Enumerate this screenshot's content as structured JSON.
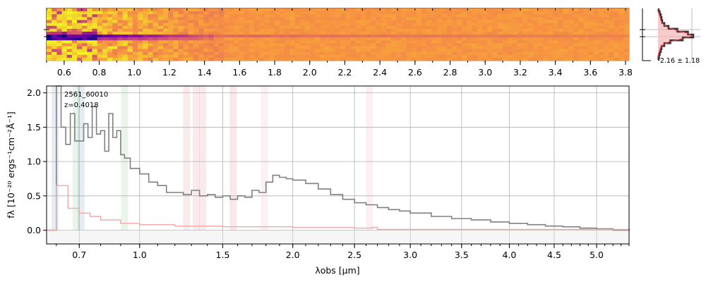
{
  "chart_data": [
    {
      "panel": "2d-spectrum",
      "type": "heatmap",
      "colormap": "plasma",
      "xaxis": "top",
      "xticks": [
        "0.6",
        "0.8",
        "1.0",
        "1.2",
        "1.4",
        "1.6",
        "1.8",
        "2.0",
        "2.2",
        "2.4",
        "2.6",
        "2.8",
        "3.0",
        "3.2",
        "3.4",
        "3.6",
        "3.8"
      ],
      "xlim": [
        0.5,
        3.82
      ],
      "trace_color": "#3a0a90"
    },
    {
      "panel": "spatial-profile",
      "type": "line",
      "label": "2.16 ± 1.18",
      "profile_rows": [
        0.02,
        0.05,
        0.08,
        0.1,
        0.12,
        0.18,
        0.3,
        0.55,
        0.85,
        1.0,
        0.7,
        0.35,
        0.18,
        0.1,
        0.08,
        0.05,
        0.03,
        0.02
      ],
      "model_color": "#d9434a",
      "data_color": "#333333"
    },
    {
      "panel": "1d-spectrum",
      "type": "line",
      "object_id": "2561_60010",
      "redshift_label": "z=0.4018",
      "xlabel": "λobs [μm]",
      "ylabel": "fλ [10⁻²⁰ ergs⁻¹cm⁻²Å⁻¹]",
      "xscale": "sqrt",
      "xlim": [
        0.56,
        5.4
      ],
      "ylim": [
        -0.2,
        2.1
      ],
      "xticks": [
        0.7,
        1.0,
        1.5,
        2.0,
        2.5,
        3.0,
        3.5,
        4.0,
        4.5,
        5.0
      ],
      "xtick_labels": [
        "0.7",
        "1.0",
        "1.5",
        "2.0",
        "2.5",
        "3.0",
        "3.5",
        "4.0",
        "4.5",
        "5.0"
      ],
      "yticks": [
        0.0,
        0.5,
        1.0,
        1.5,
        2.0
      ],
      "ytick_labels": [
        "0.0",
        "0.5",
        "1.0",
        "1.5",
        "2.0"
      ],
      "grid": true,
      "series": [
        {
          "role": "flux",
          "color": "#808080",
          "x": [
            0.56,
            0.6,
            0.62,
            0.64,
            0.66,
            0.68,
            0.7,
            0.72,
            0.74,
            0.76,
            0.78,
            0.8,
            0.82,
            0.84,
            0.86,
            0.88,
            0.9,
            0.92,
            0.95,
            1.0,
            1.05,
            1.1,
            1.15,
            1.2,
            1.25,
            1.3,
            1.35,
            1.4,
            1.45,
            1.5,
            1.55,
            1.6,
            1.65,
            1.7,
            1.75,
            1.8,
            1.85,
            1.9,
            1.95,
            2.0,
            2.1,
            2.2,
            2.3,
            2.4,
            2.5,
            2.6,
            2.7,
            2.8,
            2.9,
            3.0,
            3.2,
            3.4,
            3.6,
            3.8,
            4.0,
            4.2,
            4.4,
            4.6,
            4.8,
            5.0,
            5.2,
            5.4
          ],
          "y": [
            0.0,
            2.1,
            1.5,
            1.25,
            1.7,
            1.3,
            1.3,
            1.55,
            1.35,
            1.8,
            1.4,
            1.45,
            1.15,
            1.7,
            1.35,
            1.45,
            1.1,
            1.05,
            0.9,
            0.82,
            0.7,
            0.65,
            0.55,
            0.55,
            0.52,
            0.58,
            0.5,
            0.52,
            0.48,
            0.5,
            0.45,
            0.5,
            0.48,
            0.58,
            0.55,
            0.7,
            0.8,
            0.77,
            0.75,
            0.73,
            0.68,
            0.6,
            0.52,
            0.45,
            0.4,
            0.37,
            0.33,
            0.3,
            0.28,
            0.25,
            0.2,
            0.17,
            0.15,
            0.12,
            0.1,
            0.08,
            0.06,
            0.05,
            0.03,
            0.02,
            0.0,
            0.02
          ]
        },
        {
          "role": "uncertainty",
          "color": "#f0a8a8",
          "x": [
            0.56,
            0.6,
            0.65,
            0.7,
            0.75,
            0.8,
            0.9,
            1.0,
            1.2,
            1.5,
            2.0,
            2.5,
            2.65,
            2.7,
            3.0,
            4.0,
            5.0,
            5.4
          ],
          "y": [
            0.0,
            0.65,
            0.32,
            0.25,
            0.2,
            0.15,
            0.1,
            0.08,
            0.06,
            0.05,
            0.04,
            0.03,
            0.04,
            0.01,
            0.01,
            0.01,
            0.01,
            0.01
          ]
        }
      ],
      "line_markers": [
        {
          "x": 0.595,
          "color": "#5a8fb8"
        },
        {
          "x": 0.686,
          "color": "#7bbf7b"
        },
        {
          "x": 0.708,
          "color": "#5a8fb8"
        },
        {
          "x": 0.92,
          "color": "#7bbf7b"
        },
        {
          "x": 1.27,
          "color": "#d98080"
        },
        {
          "x": 1.33,
          "color": "#d98080"
        },
        {
          "x": 1.37,
          "color": "#d98080"
        },
        {
          "x": 1.57,
          "color": "#e07070"
        },
        {
          "x": 1.79,
          "color": "#f2a0c0"
        },
        {
          "x": 2.63,
          "color": "#f2a0c0"
        }
      ]
    }
  ]
}
